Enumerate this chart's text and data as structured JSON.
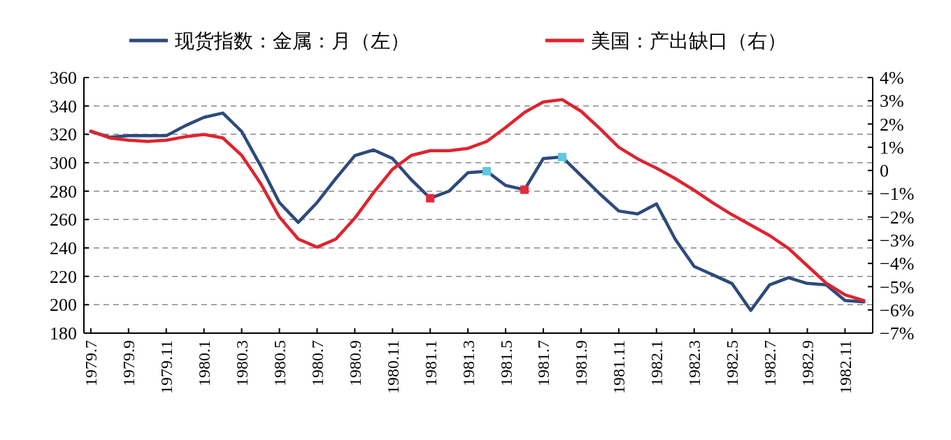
{
  "chart_data": {
    "type": "line",
    "x": [
      "1979-07",
      "1979-08",
      "1979-09",
      "1979-10",
      "1979-11",
      "1979-12",
      "1980-01",
      "1980-02",
      "1980-03",
      "1980-04",
      "1980-05",
      "1980-06",
      "1980-07",
      "1980-08",
      "1980-09",
      "1980-10",
      "1980-11",
      "1980-12",
      "1981-01",
      "1981-02",
      "1981-03",
      "1981-04",
      "1981-05",
      "1981-06",
      "1981-07",
      "1981-08",
      "1981-09",
      "1981-10",
      "1981-11",
      "1981-12",
      "1982-01",
      "1982-02",
      "1982-03",
      "1982-04",
      "1982-05",
      "1982-06",
      "1982-07",
      "1982-08",
      "1982-09",
      "1982-10",
      "1982-11",
      "1982-12"
    ],
    "series": [
      {
        "name": "现货指数：金属：月（左）",
        "color": "#2d4a7c",
        "values": [
          322,
          318,
          319,
          319,
          319,
          326,
          332,
          335,
          322,
          298,
          272,
          258,
          272,
          289,
          305,
          309,
          303,
          288,
          275,
          280,
          293,
          294,
          284,
          281,
          303,
          304,
          291,
          278,
          266,
          264,
          271,
          246,
          227,
          221,
          215,
          196,
          214,
          219,
          215,
          214,
          203,
          202
        ]
      },
      {
        "name": "美国：产出缺口（右）",
        "color": "#e0232e",
        "axis": "y2",
        "values": [
          1.7,
          1.4,
          1.3,
          1.25,
          1.3,
          1.45,
          1.55,
          1.4,
          0.65,
          -0.55,
          -2.0,
          -2.95,
          -3.3,
          -2.95,
          -2.05,
          -0.95,
          0.05,
          0.65,
          0.85,
          0.85,
          0.95,
          1.25,
          1.85,
          2.5,
          2.95,
          3.05,
          2.55,
          1.8,
          1.0,
          0.5,
          0.1,
          -0.35,
          -0.85,
          -1.4,
          -1.9,
          -2.35,
          -2.8,
          -3.35,
          -4.1,
          -4.85,
          -5.35,
          -5.6
        ]
      },
      {
        "type": "scatter",
        "marker": "square",
        "x": [
          "1981-01",
          "1981-04",
          "1981-06",
          "1981-08"
        ],
        "values": [
          275,
          294,
          281,
          304
        ],
        "colors": [
          "#e8283c",
          "#5bc8e0",
          "#e8283c",
          "#5bc8e0"
        ]
      }
    ],
    "xlim": [
      "1979-06-20",
      "1982-12-15"
    ],
    "xticks": [
      {
        "value": "1979-07",
        "label": "1979.7"
      },
      {
        "value": "1979-09",
        "label": "1979.9"
      },
      {
        "value": "1979-11",
        "label": "1979.11"
      },
      {
        "value": "1980-01",
        "label": "1980.1"
      },
      {
        "value": "1980-03",
        "label": "1980.3"
      },
      {
        "value": "1980-05",
        "label": "1980.5"
      },
      {
        "value": "1980-07",
        "label": "1980.7"
      },
      {
        "value": "1980-09",
        "label": "1980.9"
      },
      {
        "value": "1980-11",
        "label": "1980.11"
      },
      {
        "value": "1981-01",
        "label": "1981.1"
      },
      {
        "value": "1981-03",
        "label": "1981.3"
      },
      {
        "value": "1981-05",
        "label": "1981.5"
      },
      {
        "value": "1981-07",
        "label": "1981.7"
      },
      {
        "value": "1981-09",
        "label": "1981.9"
      },
      {
        "value": "1981-11",
        "label": "1981.11"
      },
      {
        "value": "1982-01",
        "label": "1982.1"
      },
      {
        "value": "1982-03",
        "label": "1982.3"
      },
      {
        "value": "1982-05",
        "label": "1982.5"
      },
      {
        "value": "1982-07",
        "label": "1982.7"
      },
      {
        "value": "1982-09",
        "label": "1982.9"
      },
      {
        "value": "1982-11",
        "label": "1982.11"
      }
    ],
    "ylim": [
      180,
      360
    ],
    "yticks": [
      180,
      200,
      220,
      240,
      260,
      280,
      300,
      320,
      340,
      360
    ],
    "y2lim": [
      -7,
      4
    ],
    "y2ticks": [
      {
        "value": -7,
        "label": "−7%"
      },
      {
        "value": -6,
        "label": "−6%"
      },
      {
        "value": -5,
        "label": "−5%"
      },
      {
        "value": -4,
        "label": "−4%"
      },
      {
        "value": -3,
        "label": "−3%"
      },
      {
        "value": -2,
        "label": "−2%"
      },
      {
        "value": -1,
        "label": "−1%"
      },
      0,
      {
        "value": 1,
        "label": "1%"
      },
      {
        "value": 2,
        "label": "2%"
      },
      {
        "value": 3,
        "label": "3%"
      },
      {
        "value": 4,
        "label": "4%"
      }
    ],
    "grid": "y",
    "legend": "top",
    "line_style": "solid"
  }
}
